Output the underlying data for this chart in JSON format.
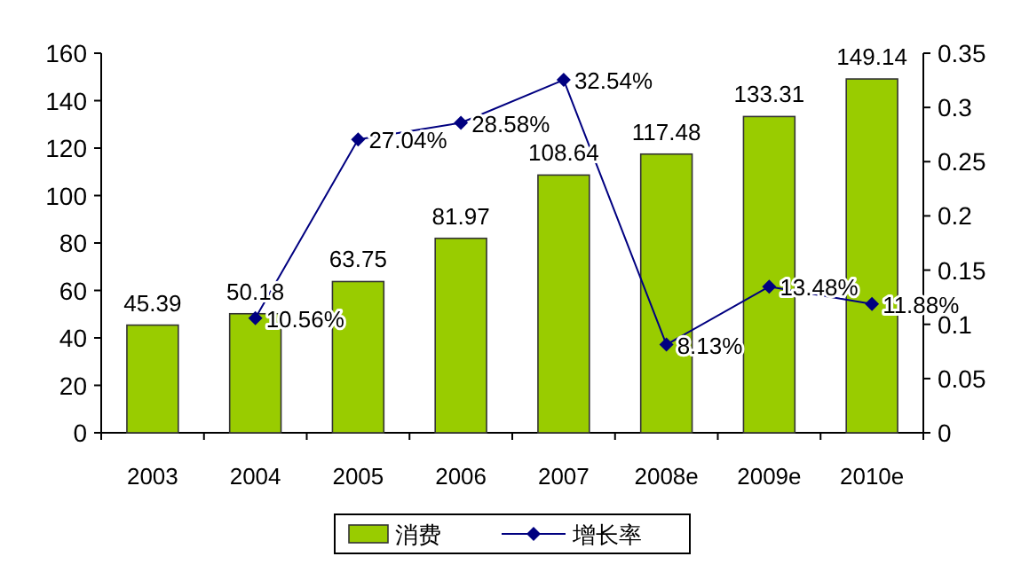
{
  "chart_data": {
    "type": "bar",
    "categories": [
      "2003",
      "2004",
      "2005",
      "2006",
      "2007",
      "2008e",
      "2009e",
      "2010e"
    ],
    "series": [
      {
        "name": "消费",
        "color": "#99cc00",
        "values": [
          45.39,
          50.18,
          63.75,
          81.97,
          108.64,
          117.48,
          133.31,
          149.14
        ],
        "value_labels": [
          "45.39",
          "50.18",
          "63.75",
          "81.97",
          "108.64",
          "117.48",
          "133.31",
          "149.14"
        ]
      },
      {
        "name": "增长率",
        "type": "line",
        "axis": "y2",
        "color": "#000080",
        "values": [
          null,
          0.1056,
          0.2704,
          0.2858,
          0.3254,
          0.0813,
          0.1348,
          0.1188
        ],
        "value_labels": [
          null,
          "10.56%",
          "27.04%",
          "28.58%",
          "32.54%",
          "8.13%",
          "13.48%",
          "11.88%"
        ]
      }
    ],
    "ylim": [
      0,
      160
    ],
    "yticks": [
      0,
      20,
      40,
      60,
      80,
      100,
      120,
      140,
      160
    ],
    "y2lim": [
      0,
      0.35
    ],
    "y2ticks": [
      0,
      0.05,
      0.1,
      0.15,
      0.2,
      0.25,
      0.3,
      0.35
    ],
    "marker": "diamond",
    "line_style": "solid",
    "grid": false,
    "legend": "bottom"
  }
}
